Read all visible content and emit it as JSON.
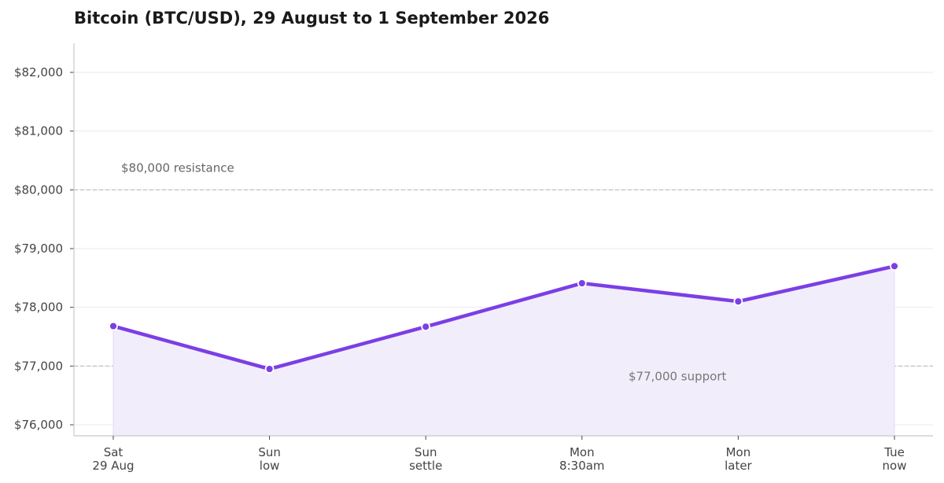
{
  "chart_data": {
    "type": "line",
    "title": "Bitcoin (BTC/USD), 29 August to 1 September 2026",
    "xlabel": "",
    "ylabel": "",
    "categories": [
      [
        "Sat",
        "29 Aug"
      ],
      [
        "Sun",
        "low"
      ],
      [
        "Sun",
        "settle"
      ],
      [
        "Mon",
        "8:30am"
      ],
      [
        "Mon",
        "later"
      ],
      [
        "Tue",
        "now"
      ]
    ],
    "series": [
      {
        "values": [
          77680,
          76950,
          77670,
          78410,
          78100,
          78700
        ]
      }
    ],
    "ylim": [
      75800,
      82500
    ],
    "yticks": [
      76000,
      77000,
      78000,
      79000,
      80000,
      81000,
      82000
    ],
    "ytick_labels": [
      "$76,000",
      "$77,000",
      "$78,000",
      "$79,000",
      "$80,000",
      "$81,000",
      "$82,000"
    ],
    "grid": true,
    "area_fill": true,
    "reference_lines": [
      {
        "value": 80000,
        "label": "$80,000 resistance"
      },
      {
        "value": 77000,
        "label": "$77,000 support"
      }
    ],
    "colors": {
      "line": "#7b3fe4",
      "fill": "#f2edfb",
      "grid": "#e9e9ee",
      "reference": "#bbbbbb"
    }
  }
}
